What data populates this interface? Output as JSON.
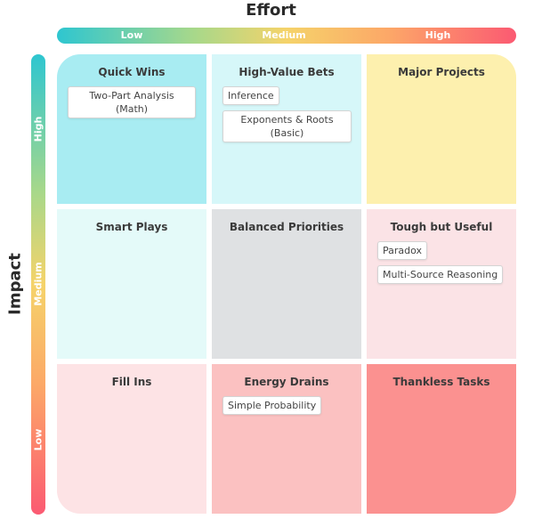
{
  "axes": {
    "x_title": "Effort",
    "x_levels": [
      "Low",
      "Medium",
      "High"
    ],
    "y_title": "Impact",
    "y_levels": [
      "High",
      "Medium",
      "Low"
    ]
  },
  "quadrants": [
    {
      "title": "Quick Wins",
      "color": "#a8ecf2",
      "items": [
        "Two-Part Analysis (Math)"
      ]
    },
    {
      "title": "High-Value Bets",
      "color": "#d6f7f9",
      "items": [
        "Inference",
        "Exponents & Roots (Basic)"
      ]
    },
    {
      "title": "Major Projects",
      "color": "#fdf0ae",
      "items": []
    },
    {
      "title": "Smart Plays",
      "color": "#e4faf9",
      "items": []
    },
    {
      "title": "Balanced Priorities",
      "color": "#dfe1e3",
      "items": []
    },
    {
      "title": "Tough but Useful",
      "color": "#fbe3e6",
      "items": [
        "Paradox",
        "Multi-Source Reasoning"
      ]
    },
    {
      "title": "Fill Ins",
      "color": "#fde3e5",
      "items": []
    },
    {
      "title": "Energy Drains",
      "color": "#fbc1c1",
      "items": [
        "Simple Probability"
      ]
    },
    {
      "title": "Thankless Tasks",
      "color": "#fb9190",
      "items": []
    }
  ]
}
